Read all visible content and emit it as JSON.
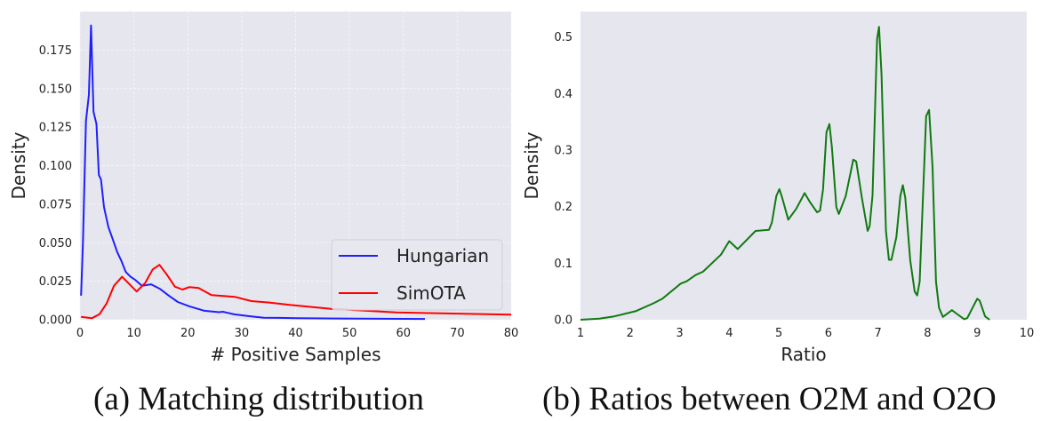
{
  "colors": {
    "background": "#e6e6ef",
    "hungarian": "#1f1fff",
    "simota": "#ff0000",
    "ratio": "#107a10"
  },
  "chart_data": [
    {
      "type": "line",
      "caption": "(a) Matching distribution",
      "xlabel": "# Positive Samples",
      "ylabel": "Density",
      "xlim": [
        0,
        80
      ],
      "ylim": [
        0,
        0.2
      ],
      "xticks": [
        "0",
        "10",
        "20",
        "30",
        "40",
        "50",
        "60",
        "70",
        "80"
      ],
      "yticks": [
        "0.000",
        "0.025",
        "0.050",
        "0.075",
        "0.100",
        "0.125",
        "0.150",
        "0.175"
      ],
      "grid": true,
      "legend": "bottom-right",
      "series": [
        {
          "name": "Hungarian",
          "color": "#1f1fff",
          "x": [
            0.2,
            0.55,
            1.1,
            1.65,
            2.04,
            2.5,
            3.05,
            3.5,
            3.9,
            4.45,
            5.28,
            6.1,
            6.9,
            7.7,
            8.5,
            9.35,
            10.2,
            11.5,
            13.2,
            14.85,
            16.5,
            18.15,
            20.3,
            23.1,
            25.8,
            26.5,
            28.6,
            31.4,
            34.1,
            36.9,
            40.2,
            48,
            64
          ],
          "y": [
            0.0156,
            0.05,
            0.129,
            0.146,
            0.191,
            0.135,
            0.127,
            0.094,
            0.091,
            0.073,
            0.06,
            0.052,
            0.044,
            0.038,
            0.031,
            0.028,
            0.026,
            0.022,
            0.023,
            0.02,
            0.0156,
            0.0115,
            0.0087,
            0.0058,
            0.0049,
            0.0052,
            0.0035,
            0.0023,
            0.0013,
            0.0012,
            0.001,
            0.0008,
            0.0005
          ]
        },
        {
          "name": "SimOTA",
          "color": "#ff0000",
          "x": [
            0.2,
            2.2,
            3.6,
            4.95,
            6.3,
            7.8,
            10.5,
            12.1,
            13.5,
            14.75,
            16.2,
            17.6,
            19,
            20.3,
            22,
            24.4,
            25.8,
            28.8,
            31.8,
            35.1,
            38.9,
            46.6,
            58.7,
            66.9,
            80
          ],
          "y": [
            0.0019,
            0.001,
            0.0035,
            0.0106,
            0.022,
            0.0279,
            0.0183,
            0.024,
            0.0327,
            0.0356,
            0.0289,
            0.0215,
            0.0196,
            0.0212,
            0.0206,
            0.016,
            0.0156,
            0.0148,
            0.0121,
            0.0112,
            0.0096,
            0.0071,
            0.0048,
            0.0042,
            0.0033
          ]
        }
      ]
    },
    {
      "type": "line",
      "caption": "(b) Ratios between O2M and O2O",
      "xlabel": "Ratio",
      "ylabel": "Density",
      "xlim": [
        1,
        10
      ],
      "ylim": [
        0,
        0.545
      ],
      "xticks": [
        "1",
        "2",
        "3",
        "4",
        "5",
        "6",
        "7",
        "8",
        "9",
        "10"
      ],
      "yticks": [
        "0.0",
        "0.1",
        "0.2",
        "0.3",
        "0.4",
        "0.5"
      ],
      "grid": false,
      "series": [
        {
          "color": "#107a10",
          "x": [
            1.0,
            1.38,
            1.68,
            2.11,
            2.47,
            2.65,
            3.02,
            3.14,
            3.32,
            3.47,
            3.83,
            4.0,
            4.17,
            4.53,
            4.8,
            4.86,
            4.95,
            5.01,
            5.07,
            5.19,
            5.35,
            5.52,
            5.62,
            5.77,
            5.83,
            5.89,
            5.96,
            6.02,
            6.07,
            6.16,
            6.21,
            6.35,
            6.5,
            6.56,
            6.68,
            6.79,
            6.83,
            6.89,
            6.98,
            7.02,
            7.07,
            7.16,
            7.22,
            7.27,
            7.37,
            7.45,
            7.5,
            7.55,
            7.65,
            7.74,
            7.79,
            7.84,
            7.97,
            8.03,
            8.1,
            8.17,
            8.23,
            8.31,
            8.49,
            8.58,
            8.74,
            8.8,
            9.0,
            9.05,
            9.16,
            9.25
          ],
          "y": [
            0,
            0.002,
            0.006,
            0.015,
            0.029,
            0.037,
            0.064,
            0.068,
            0.079,
            0.085,
            0.115,
            0.139,
            0.125,
            0.157,
            0.159,
            0.172,
            0.219,
            0.231,
            0.215,
            0.177,
            0.196,
            0.224,
            0.209,
            0.19,
            0.193,
            0.23,
            0.332,
            0.346,
            0.305,
            0.199,
            0.187,
            0.219,
            0.283,
            0.28,
            0.213,
            0.157,
            0.165,
            0.22,
            0.496,
            0.518,
            0.434,
            0.157,
            0.106,
            0.106,
            0.146,
            0.219,
            0.238,
            0.216,
            0.105,
            0.05,
            0.043,
            0.067,
            0.36,
            0.371,
            0.27,
            0.067,
            0.021,
            0.005,
            0.017,
            0.011,
            0.001,
            0.003,
            0.037,
            0.034,
            0.006,
            0
          ]
        }
      ]
    }
  ]
}
